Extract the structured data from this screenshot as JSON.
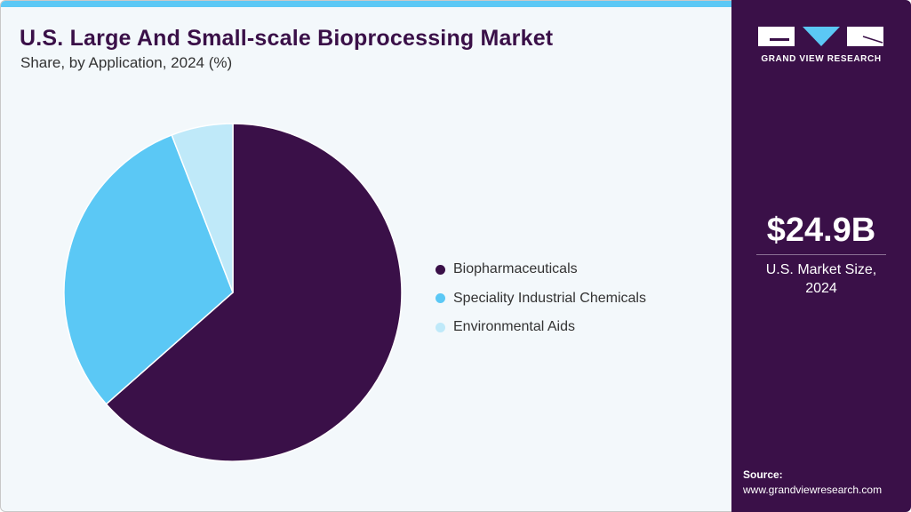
{
  "header": {
    "title": "U.S. Large And Small-scale Bioprocessing Market",
    "subtitle": "Share, by Application, 2024 (%)"
  },
  "chart_data": {
    "type": "pie",
    "title": "U.S. Large And Small-scale Bioprocessing Market",
    "subtitle": "Share, by Application, 2024 (%)",
    "categories": [
      "Biopharmaceuticals",
      "Speciality Industrial Chemicals",
      "Environmental Aids"
    ],
    "values": [
      63.5,
      30.6,
      5.9
    ],
    "colors": [
      "#3a1048",
      "#5bc8f5",
      "#bfe9f9"
    ],
    "legend_position": "right"
  },
  "sidebar": {
    "logo_text": "GRAND VIEW RESEARCH",
    "market_size": "$24.9B",
    "caption_line1": "U.S. Market Size,",
    "caption_line2": "2024",
    "source_label": "Source:",
    "source_url": "www.grandviewresearch.com"
  }
}
